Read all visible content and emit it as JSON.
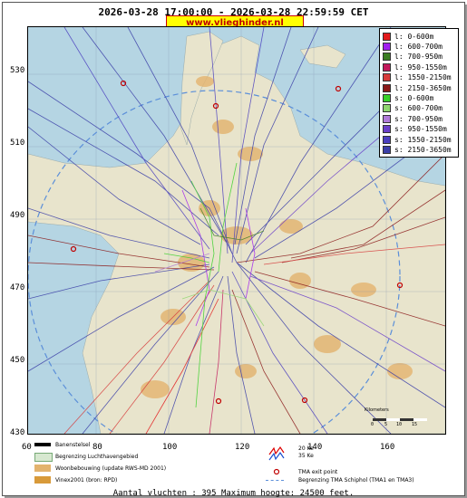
{
  "header": {
    "title": "2026-03-28 17:00:00 - 2026-03-28 22:59:59 CET",
    "brand": "www.vlieghinder.nl"
  },
  "legend": [
    {
      "label": "l: 0-600m",
      "color": "#e31a1c"
    },
    {
      "label": "l: 600-700m",
      "color": "#a020f0"
    },
    {
      "label": "l: 700-950m",
      "color": "#3a7d22"
    },
    {
      "label": "l: 950-1550m",
      "color": "#c2185b"
    },
    {
      "label": "l: 1550-2150m",
      "color": "#d63b3b"
    },
    {
      "label": "l: 2150-3650m",
      "color": "#8b1a1a"
    },
    {
      "label": "s: 0-600m",
      "color": "#39d12a"
    },
    {
      "label": "s: 600-700m",
      "color": "#8fd66f"
    },
    {
      "label": "s: 700-950m",
      "color": "#b07ad9"
    },
    {
      "label": "s: 950-1550m",
      "color": "#6a3ec9"
    },
    {
      "label": "s: 1550-2150m",
      "color": "#4b3fbf"
    },
    {
      "label": "s: 2150-3650m",
      "color": "#3b3fa8"
    }
  ],
  "axes": {
    "y_ticks": [
      "530",
      "510",
      "490",
      "470",
      "450",
      "430"
    ],
    "x_ticks": [
      "60",
      "80",
      "100",
      "120",
      "140",
      "160"
    ]
  },
  "scale_bar": {
    "label": "Kilometers",
    "ticks": [
      "0",
      "5",
      "10",
      "15"
    ]
  },
  "map_legend": {
    "runway": "Banenstelsel",
    "airport_boundary": "Begrenzing Luchthavengebied",
    "housing": "Woonbebouwing (update RWS-MD 2001)",
    "vinex": "Vinex2001 (bron: RPD)",
    "noise_20": "20 Ke",
    "noise_35": "35 Ke",
    "tma_exit": "TMA exit point",
    "tma_boundary": "Begrenzing TMA Schiphol  (TMA1 en TMA3)"
  },
  "footer": "Aantal vluchten : 395 Maximum hoogte: 24500 feet.",
  "colors": {
    "sea": "#b5d5e3",
    "land": "#e8e4cc",
    "urban": "#e3b36e"
  }
}
